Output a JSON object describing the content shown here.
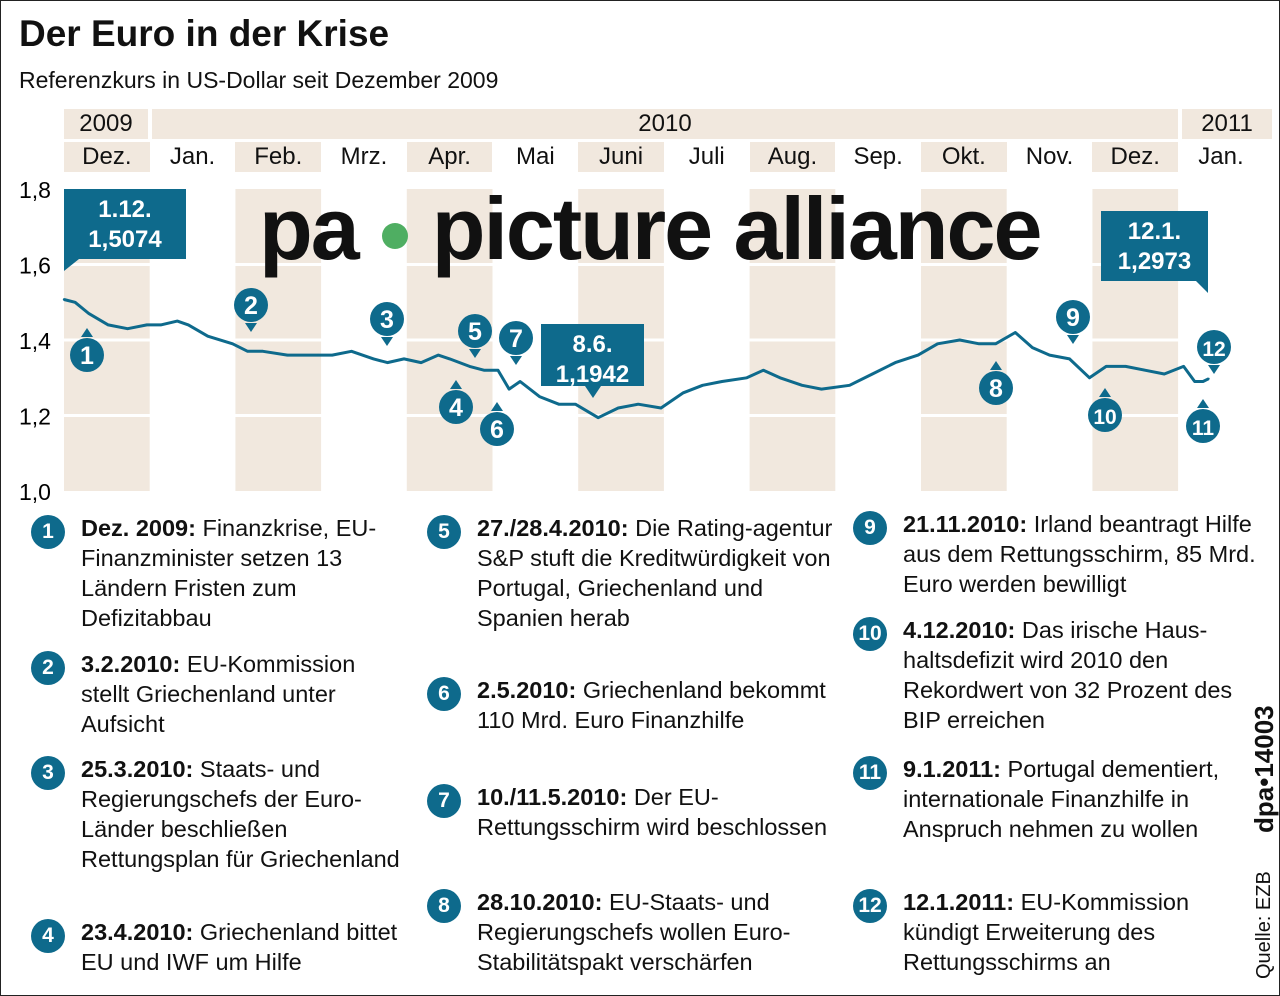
{
  "title": "Der Euro in der Krise",
  "subtitle": "Referenzkurs in US-Dollar seit Dezember 2009",
  "colors": {
    "line": "#0e6a8c",
    "band": "#f1e8de",
    "marker": "#0e6a8c",
    "watermark_dot": "#4fae62"
  },
  "years": [
    "2009",
    "2010",
    "2011"
  ],
  "months": [
    "Dez.",
    "Jan.",
    "Feb.",
    "Mrz.",
    "Apr.",
    "Mai",
    "Juni",
    "Juli",
    "Aug.",
    "Sep.",
    "Okt.",
    "Nov.",
    "Dez.",
    "Jan."
  ],
  "chart_data": {
    "type": "line",
    "title": "Der Euro in der Krise",
    "ylabel": "",
    "ylim": [
      1.0,
      1.8
    ],
    "yticks": [
      "1,0",
      "1,2",
      "1,4",
      "1,6",
      "1,8"
    ],
    "grid": true,
    "series": [
      {
        "x": [
          "2009-12-01",
          "2009-12-05",
          "2009-12-10",
          "2009-12-17",
          "2009-12-24",
          "2009-12-31",
          "2010-01-05",
          "2010-01-11",
          "2010-01-15",
          "2010-01-22",
          "2010-01-31",
          "2010-02-05",
          "2010-02-10",
          "2010-02-18",
          "2010-02-28",
          "2010-03-05",
          "2010-03-12",
          "2010-03-20",
          "2010-03-25",
          "2010-03-31",
          "2010-04-06",
          "2010-04-12",
          "2010-04-16",
          "2010-04-23",
          "2010-04-28",
          "2010-05-03",
          "2010-05-07",
          "2010-05-11",
          "2010-05-18",
          "2010-05-25",
          "2010-05-31",
          "2010-06-08",
          "2010-06-15",
          "2010-06-22",
          "2010-06-30",
          "2010-07-08",
          "2010-07-15",
          "2010-07-22",
          "2010-07-31",
          "2010-08-06",
          "2010-08-12",
          "2010-08-20",
          "2010-08-27",
          "2010-09-06",
          "2010-09-14",
          "2010-09-22",
          "2010-09-30",
          "2010-10-07",
          "2010-10-15",
          "2010-10-22",
          "2010-10-28",
          "2010-11-04",
          "2010-11-10",
          "2010-11-16",
          "2010-11-23",
          "2010-11-30",
          "2010-12-06",
          "2010-12-13",
          "2010-12-20",
          "2010-12-27",
          "2011-01-03",
          "2011-01-07",
          "2011-01-10",
          "2011-01-12"
        ],
        "y": [
          1.5074,
          1.5,
          1.47,
          1.44,
          1.43,
          1.44,
          1.44,
          1.45,
          1.44,
          1.41,
          1.39,
          1.37,
          1.37,
          1.36,
          1.36,
          1.36,
          1.37,
          1.35,
          1.34,
          1.35,
          1.34,
          1.36,
          1.35,
          1.33,
          1.32,
          1.32,
          1.27,
          1.29,
          1.25,
          1.23,
          1.23,
          1.1942,
          1.22,
          1.23,
          1.22,
          1.26,
          1.28,
          1.29,
          1.3,
          1.32,
          1.3,
          1.28,
          1.27,
          1.28,
          1.31,
          1.34,
          1.36,
          1.39,
          1.4,
          1.39,
          1.39,
          1.42,
          1.38,
          1.36,
          1.35,
          1.3,
          1.33,
          1.33,
          1.32,
          1.31,
          1.33,
          1.29,
          1.29,
          1.2973
        ]
      }
    ],
    "annotations": [
      {
        "date": "1.12.",
        "value": "1,5074"
      },
      {
        "date": "8.6.",
        "value": "1,1942"
      },
      {
        "date": "12.1.",
        "value": "1,2973"
      }
    ],
    "markers": [
      "1",
      "2",
      "3",
      "4",
      "5",
      "6",
      "7",
      "8",
      "9",
      "10",
      "11",
      "12"
    ]
  },
  "legend": [
    {
      "num": "1",
      "date": "Dez. 2009:",
      "text": "Finanzkrise, EU-Finanzminister setzen 13 Ländern Fristen zum Defizitabbau"
    },
    {
      "num": "2",
      "date": "3.2.2010:",
      "text": "EU-Kommission stellt Griechenland unter Aufsicht"
    },
    {
      "num": "3",
      "date": "25.3.2010:",
      "text": "Staats- und Regierungschefs der Euro-Länder beschließen Rettungsplan für Griechenland"
    },
    {
      "num": "4",
      "date": "23.4.2010:",
      "text": "Griechenland bittet EU und IWF um Hilfe"
    },
    {
      "num": "5",
      "date": "27./28.4.2010:",
      "text": "Die Rating-agentur S&P stuft die Kreditwürdigkeit von Portugal, Griechenland und Spanien herab"
    },
    {
      "num": "6",
      "date": "2.5.2010:",
      "text": "Griechenland bekommt 110 Mrd. Euro Finanzhilfe"
    },
    {
      "num": "7",
      "date": "10./11.5.2010:",
      "text": "Der EU-Rettungsschirm wird beschlossen"
    },
    {
      "num": "8",
      "date": "28.10.2010:",
      "text": "EU-Staats- und Regierungschefs wollen Euro-Stabilitätspakt verschärfen"
    },
    {
      "num": "9",
      "date": "21.11.2010:",
      "text": "Irland beantragt Hilfe aus dem Rettungsschirm, 85 Mrd. Euro werden bewilligt"
    },
    {
      "num": "10",
      "date": "4.12.2010:",
      "text": "Das irische Haus-haltsdefizit wird 2010 den Rekordwert von 32 Prozent des BIP erreichen"
    },
    {
      "num": "11",
      "date": "9.1.2011:",
      "text": "Portugal dementiert, internationale Finanzhilfe in Anspruch nehmen zu wollen"
    },
    {
      "num": "12",
      "date": "12.1.2011:",
      "text": "EU-Kommission kündigt Erweiterung des Rettungsschirms an"
    }
  ],
  "watermark": {
    "left": "pa",
    "right": "picture alliance"
  },
  "source": "Quelle: EZB",
  "credit": "dpa•14003"
}
